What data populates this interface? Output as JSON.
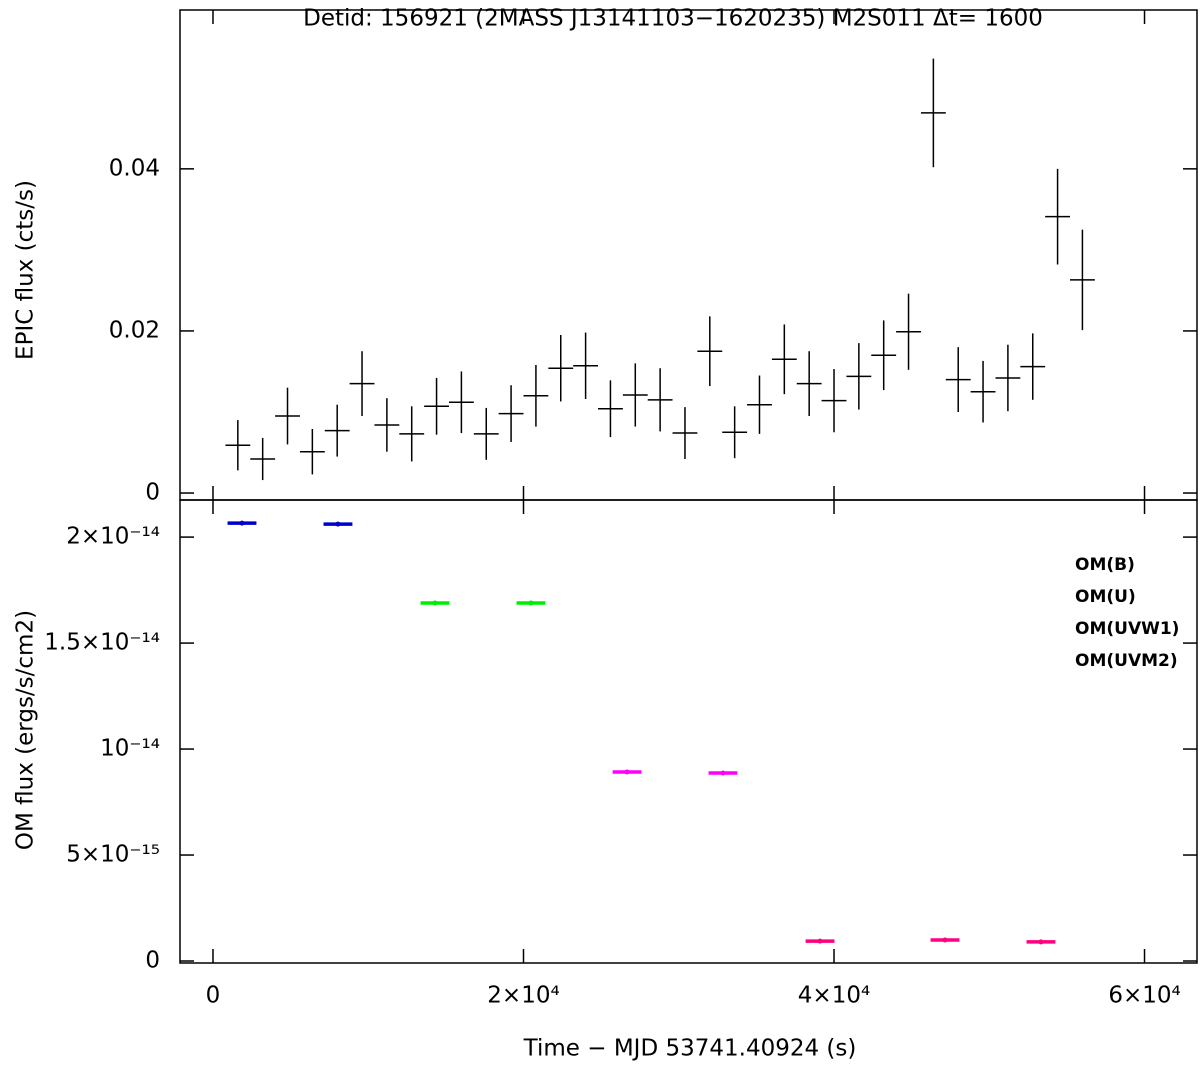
{
  "chart_data": [
    {
      "type": "errorbar",
      "title": "Detid: 156921 (2MASS J13141103−1620235)    M2S011    Δt= 1600",
      "ylabel": "EPIC flux (cts/s)",
      "xlim": [
        -2125,
        63380
      ],
      "ylim": [
        -0.00086,
        0.0596
      ],
      "yticks": [
        0,
        0.02,
        0.04
      ],
      "series": [
        {
          "color": "#000000",
          "x_error": 800,
          "x": [
            1600,
            3200,
            4800,
            6400,
            8000,
            9600,
            11200,
            12800,
            14400,
            16000,
            17600,
            19200,
            20800,
            22400,
            24000,
            25600,
            27200,
            28800,
            30400,
            32000,
            33600,
            35200,
            36800,
            38400,
            40000,
            41600,
            43200,
            44800,
            46400,
            48000,
            49600,
            51200,
            52800,
            54400,
            56000
          ],
          "values": [
            0.0059,
            0.0042,
            0.0095,
            0.0051,
            0.0077,
            0.0135,
            0.0084,
            0.0073,
            0.0107,
            0.0112,
            0.0073,
            0.0098,
            0.012,
            0.0154,
            0.0157,
            0.0104,
            0.0121,
            0.0115,
            0.0074,
            0.0175,
            0.0075,
            0.0109,
            0.0165,
            0.0135,
            0.0114,
            0.0144,
            0.017,
            0.0199,
            0.0469,
            0.014,
            0.0125,
            0.0142,
            0.0156,
            0.0341,
            0.0263
          ],
          "errors": [
            0.0031,
            0.0026,
            0.0035,
            0.0028,
            0.0032,
            0.004,
            0.0033,
            0.0034,
            0.0035,
            0.0038,
            0.0032,
            0.0035,
            0.0038,
            0.0041,
            0.0041,
            0.0035,
            0.0039,
            0.0039,
            0.0032,
            0.0043,
            0.0032,
            0.0036,
            0.0043,
            0.004,
            0.0039,
            0.0041,
            0.0043,
            0.0047,
            0.0067,
            0.004,
            0.0038,
            0.0041,
            0.0041,
            0.0059,
            0.0062
          ]
        }
      ]
    },
    {
      "type": "errorbar",
      "ylabel": "OM flux (ergs/s/cm2)",
      "xlabel": "Time − MJD 53741.40924 (s)",
      "xlim": [
        -2125,
        63380
      ],
      "ylim": [
        -9.4e-17,
        2.175e-14
      ],
      "xticks": [
        0,
        {
          "value": 20000,
          "label": "2×10⁴"
        },
        {
          "value": 40000,
          "label": "4×10⁴"
        },
        {
          "value": 60000,
          "label": "6×10⁴"
        }
      ],
      "yticks": [
        0,
        {
          "value": 5e-15,
          "label": "5×10⁻¹⁵"
        },
        {
          "value": 1e-14,
          "label": "10⁻¹⁴"
        },
        {
          "value": 1.5e-14,
          "label": "1.5×10⁻¹⁴"
        },
        {
          "value": 2e-14,
          "label": "2×10⁻¹⁴"
        }
      ],
      "legend": "upper right",
      "series": [
        {
          "name": "OM(B)",
          "color": "#00ee00",
          "x": [
            14300,
            20480
          ],
          "values": [
            1.689e-14,
            1.689e-14
          ],
          "x_error": 930
        },
        {
          "name": "OM(U)",
          "color": "#0000cc",
          "x": [
            1868,
            8050
          ],
          "values": [
            2.066e-14,
            2.061e-14
          ],
          "x_error": 930
        },
        {
          "name": "OM(UVW1)",
          "color": "#ff00ff",
          "x": [
            26670,
            32850
          ],
          "values": [
            8.92e-15,
            8.87e-15
          ],
          "x_error": 930
        },
        {
          "name": "OM(UVM2)",
          "color": "#ff0080",
          "x": [
            39100,
            47150,
            53330
          ],
          "values": [
            9.4e-16,
            9.9e-16,
            9e-16
          ],
          "x_error": 930
        }
      ]
    }
  ]
}
